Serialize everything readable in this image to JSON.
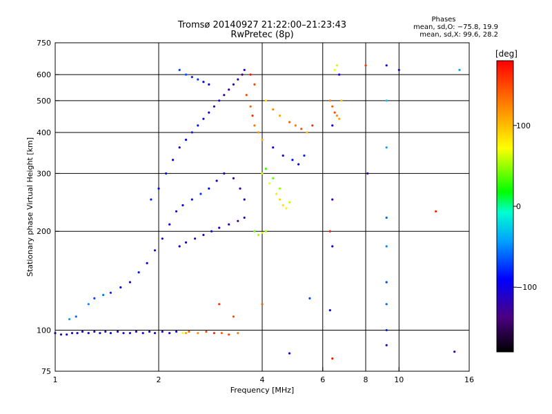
{
  "chart_data": {
    "type": "scatter",
    "title": "Tromsø 20140927 21:22:00–21:23:43",
    "subtitle": "RwPretec (8p)",
    "phases": {
      "heading": "Phases",
      "line1": "mean, sd,O:  −75.8, 19.9",
      "line2": "mean, sd,X:  99.6, 28.2"
    },
    "xlabel": "Frequency [MHz]",
    "ylabel": "Stationary phase Virtual Height [km]",
    "x_scale": "log",
    "y_scale": "log",
    "xlim": [
      1,
      16
    ],
    "ylim": [
      75,
      750
    ],
    "x_ticks": [
      {
        "value": 1,
        "label": "1"
      },
      {
        "value": 2,
        "label": "2"
      },
      {
        "value": 4,
        "label": "4"
      },
      {
        "value": 6,
        "label": "6"
      },
      {
        "value": 8,
        "label": "8"
      },
      {
        "value": 10,
        "label": "10"
      },
      {
        "value": 16,
        "label": "16"
      }
    ],
    "x_grid": [
      2,
      4,
      6,
      8,
      10
    ],
    "y_ticks": [
      {
        "value": 75,
        "label": "75"
      },
      {
        "value": 100,
        "label": "100"
      },
      {
        "value": 200,
        "label": "200"
      },
      {
        "value": 300,
        "label": "300"
      },
      {
        "value": 400,
        "label": "400"
      },
      {
        "value": 500,
        "label": "500"
      },
      {
        "value": 600,
        "label": "600"
      },
      {
        "value": 750,
        "label": "750"
      }
    ],
    "y_grid": [
      100,
      200,
      300,
      400,
      500,
      600
    ],
    "colorbar": {
      "label": "[deg]",
      "range": [
        -180,
        180
      ],
      "ticks": [
        {
          "value": 100,
          "label": "100"
        },
        {
          "value": 0,
          "label": "0"
        },
        {
          "value": -100,
          "label": "−100"
        }
      ]
    },
    "points": [
      [
        1.0,
        98,
        -120
      ],
      [
        1.04,
        97,
        -110
      ],
      [
        1.08,
        97,
        -100
      ],
      [
        1.12,
        98,
        -105
      ],
      [
        1.16,
        98,
        -95
      ],
      [
        1.2,
        99,
        -110
      ],
      [
        1.25,
        98,
        -100
      ],
      [
        1.3,
        99,
        -115
      ],
      [
        1.35,
        98,
        -105
      ],
      [
        1.4,
        99,
        -120
      ],
      [
        1.45,
        98,
        -100
      ],
      [
        1.52,
        99,
        -110
      ],
      [
        1.58,
        98,
        -115
      ],
      [
        1.65,
        98,
        -105
      ],
      [
        1.72,
        99,
        -120
      ],
      [
        1.8,
        98,
        -110
      ],
      [
        1.88,
        99,
        -100
      ],
      [
        1.95,
        98,
        -115
      ],
      [
        2.05,
        99,
        -105
      ],
      [
        2.15,
        98,
        -110
      ],
      [
        2.25,
        99,
        -95
      ],
      [
        2.35,
        98,
        70
      ],
      [
        2.4,
        98,
        110
      ],
      [
        2.45,
        99,
        140
      ],
      [
        2.6,
        98,
        120
      ],
      [
        2.75,
        99,
        150
      ],
      [
        2.9,
        98,
        160
      ],
      [
        3.05,
        98,
        140
      ],
      [
        3.2,
        97,
        150
      ],
      [
        3.4,
        98,
        130
      ],
      [
        1.1,
        108,
        -40
      ],
      [
        1.15,
        110,
        -60
      ],
      [
        1.25,
        120,
        -50
      ],
      [
        1.3,
        125,
        -70
      ],
      [
        1.38,
        128,
        -55
      ],
      [
        1.45,
        130,
        -80
      ],
      [
        1.55,
        135,
        -90
      ],
      [
        1.65,
        140,
        -95
      ],
      [
        1.75,
        150,
        -85
      ],
      [
        1.85,
        160,
        -100
      ],
      [
        1.95,
        175,
        -105
      ],
      [
        2.05,
        190,
        -110
      ],
      [
        2.15,
        210,
        -95
      ],
      [
        2.25,
        230,
        -100
      ],
      [
        2.35,
        240,
        -90
      ],
      [
        2.5,
        250,
        -85
      ],
      [
        2.65,
        260,
        -75
      ],
      [
        2.8,
        270,
        -90
      ],
      [
        2.95,
        285,
        -100
      ],
      [
        3.1,
        300,
        -110
      ],
      [
        3.3,
        290,
        -120
      ],
      [
        3.45,
        270,
        -130
      ],
      [
        3.55,
        250,
        -110
      ],
      [
        1.9,
        250,
        -80
      ],
      [
        2.0,
        270,
        -90
      ],
      [
        2.1,
        300,
        -85
      ],
      [
        2.2,
        330,
        -95
      ],
      [
        2.3,
        360,
        -100
      ],
      [
        2.4,
        380,
        -90
      ],
      [
        2.5,
        400,
        -80
      ],
      [
        2.6,
        420,
        -85
      ],
      [
        2.7,
        440,
        -100
      ],
      [
        2.8,
        460,
        -110
      ],
      [
        2.9,
        480,
        -120
      ],
      [
        3.0,
        500,
        -115
      ],
      [
        3.1,
        520,
        -125
      ],
      [
        3.2,
        540,
        -130
      ],
      [
        3.3,
        560,
        -120
      ],
      [
        3.4,
        580,
        -125
      ],
      [
        3.5,
        600,
        -130
      ],
      [
        3.55,
        620,
        -110
      ],
      [
        2.3,
        620,
        -70
      ],
      [
        2.4,
        600,
        -65
      ],
      [
        2.5,
        590,
        -80
      ],
      [
        2.6,
        580,
        -75
      ],
      [
        2.7,
        570,
        -90
      ],
      [
        2.8,
        560,
        -95
      ],
      [
        2.3,
        180,
        -100
      ],
      [
        2.4,
        185,
        -105
      ],
      [
        2.55,
        190,
        -110
      ],
      [
        2.7,
        195,
        -115
      ],
      [
        2.85,
        200,
        -100
      ],
      [
        3.0,
        205,
        -110
      ],
      [
        3.2,
        210,
        -120
      ],
      [
        3.4,
        215,
        -130
      ],
      [
        3.55,
        220,
        -115
      ],
      [
        3.6,
        520,
        150
      ],
      [
        3.7,
        480,
        140
      ],
      [
        3.75,
        450,
        160
      ],
      [
        3.8,
        420,
        130
      ],
      [
        3.9,
        400,
        120
      ],
      [
        4.0,
        380,
        110
      ],
      [
        3.7,
        600,
        170
      ],
      [
        3.8,
        560,
        150
      ],
      [
        4.1,
        500,
        90
      ],
      [
        4.3,
        470,
        120
      ],
      [
        4.5,
        450,
        110
      ],
      [
        4.8,
        430,
        140
      ],
      [
        5.0,
        420,
        130
      ],
      [
        5.2,
        410,
        150
      ],
      [
        5.4,
        400,
        100
      ],
      [
        5.6,
        420,
        160
      ],
      [
        4.0,
        300,
        60
      ],
      [
        4.2,
        280,
        70
      ],
      [
        4.4,
        260,
        80
      ],
      [
        4.5,
        250,
        90
      ],
      [
        4.6,
        240,
        85
      ],
      [
        4.7,
        235,
        75
      ],
      [
        4.8,
        245,
        60
      ],
      [
        4.5,
        270,
        50
      ],
      [
        4.3,
        290,
        40
      ],
      [
        4.1,
        310,
        30
      ],
      [
        3.8,
        200,
        40
      ],
      [
        3.9,
        195,
        55
      ],
      [
        4.0,
        198,
        65
      ],
      [
        4.1,
        200,
        50
      ],
      [
        4.3,
        360,
        -100
      ],
      [
        4.6,
        340,
        -110
      ],
      [
        4.9,
        330,
        -90
      ],
      [
        5.1,
        320,
        -100
      ],
      [
        5.3,
        340,
        -80
      ],
      [
        6.3,
        500,
        130
      ],
      [
        6.4,
        480,
        140
      ],
      [
        6.5,
        460,
        150
      ],
      [
        6.6,
        450,
        120
      ],
      [
        6.7,
        440,
        110
      ],
      [
        6.8,
        500,
        100
      ],
      [
        6.5,
        620,
        70
      ],
      [
        6.6,
        640,
        60
      ],
      [
        6.7,
        600,
        -110
      ],
      [
        6.4,
        420,
        -100
      ],
      [
        8.0,
        640,
        160
      ],
      [
        8.1,
        300,
        -120
      ],
      [
        9.2,
        640,
        -90
      ],
      [
        9.2,
        500,
        -30
      ],
      [
        9.2,
        360,
        -40
      ],
      [
        9.2,
        220,
        -60
      ],
      [
        9.2,
        180,
        -50
      ],
      [
        9.2,
        140,
        -70
      ],
      [
        9.2,
        120,
        -60
      ],
      [
        9.2,
        100,
        -80
      ],
      [
        9.2,
        90,
        -100
      ],
      [
        10.0,
        620,
        -110
      ],
      [
        12.8,
        230,
        170
      ],
      [
        15.0,
        620,
        -40
      ],
      [
        14.5,
        86,
        -120
      ],
      [
        6.4,
        82,
        170
      ],
      [
        4.8,
        85,
        -100
      ],
      [
        3.0,
        120,
        160
      ],
      [
        3.3,
        110,
        150
      ],
      [
        4.0,
        120,
        140
      ],
      [
        5.5,
        125,
        -70
      ],
      [
        6.3,
        115,
        -100
      ],
      [
        6.3,
        200,
        170
      ],
      [
        6.4,
        180,
        -110
      ],
      [
        6.4,
        250,
        -120
      ]
    ]
  }
}
